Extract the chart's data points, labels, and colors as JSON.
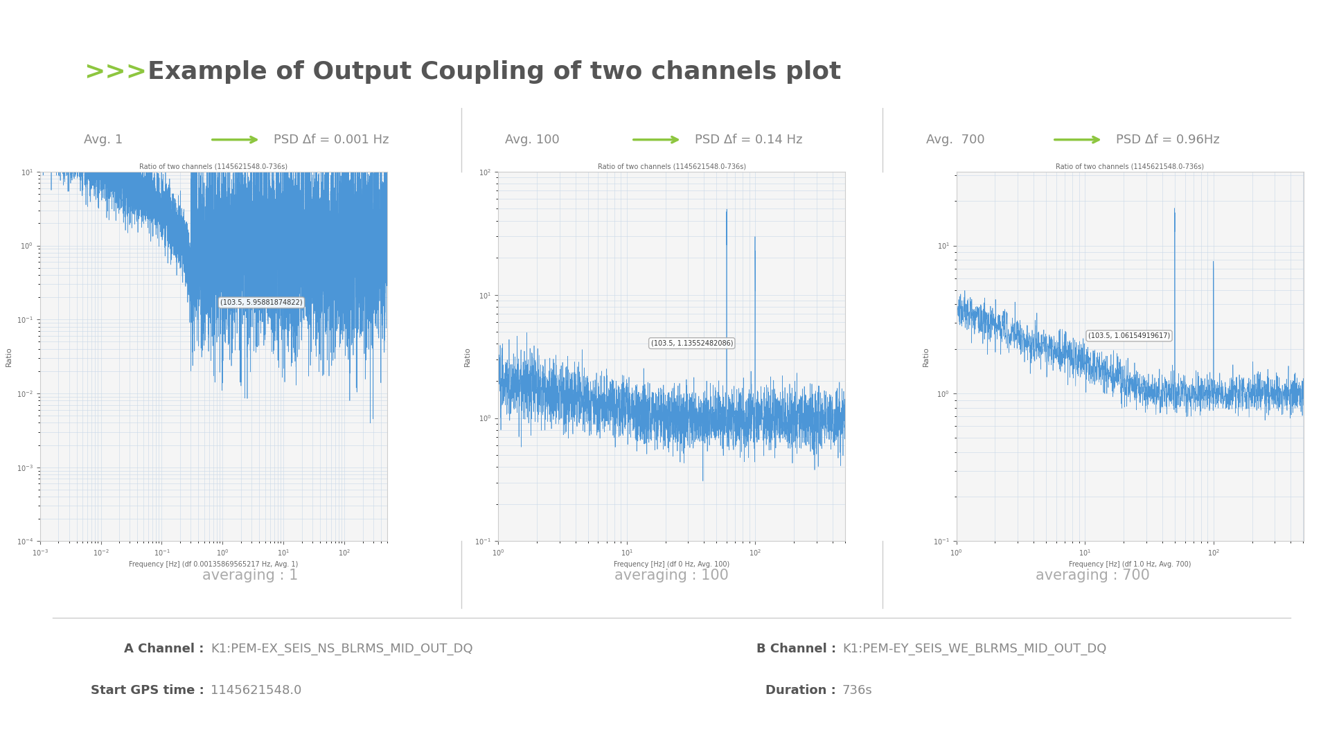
{
  "title": "Example of Output Coupling of two channels plot",
  "title_prefix": ">>>",
  "title_prefix_color": "#8dc63f",
  "title_color": "#555555",
  "title_fontsize": 26,
  "panels": [
    {
      "avg_label": "Avg. 1",
      "psd_label": "PSD Δf = 0.001 Hz",
      "plot_title": "Ratio of two channels (1145621548.0-736s)",
      "xlabel": "Frequency [Hz] (df 0.00135869565217 Hz, Avg. 1)",
      "ylabel": "Ratio",
      "annotation": "(103.5, 5.95881874822)",
      "averaging_text": "averaging : 1"
    },
    {
      "avg_label": "Avg. 100",
      "psd_label": "PSD Δf = 0.14 Hz",
      "plot_title": "Ratio of two channels (1145621548.0-736s)",
      "xlabel": "Frequency [Hz] (df 0 Hz, Avg. 100)",
      "ylabel": "Ratio",
      "annotation": "(103.5, 1.13552482086)",
      "averaging_text": "averaging : 100"
    },
    {
      "avg_label": "Avg.  700",
      "psd_label": "PSD Δf = 0.96Hz",
      "plot_title": "Ratio of two channels (1145621548.0-736s)",
      "xlabel": "Frequency [Hz] (df 1.0 Hz, Avg. 700)",
      "ylabel": "Ratio",
      "annotation": "(103.5, 1.06154919617)",
      "averaging_text": "averaging : 700"
    }
  ],
  "line_color": "#4c96d7",
  "bg_color": "#ffffff",
  "plot_bg_color": "#f5f5f5",
  "grid_color": "#c8d8e8",
  "a_channel": "K1:PEM-EX_SEIS_NS_BLRMS_MID_OUT_DQ",
  "b_channel": "K1:PEM-EY_SEIS_WE_BLRMS_MID_OUT_DQ",
  "start_gps": "1145621548.0",
  "duration": "736s",
  "footer_color": "#888888",
  "footer_bold_color": "#555555",
  "footer_fontsize": 13,
  "avg_fontsize": 13,
  "psd_fontsize": 13,
  "averaging_fontsize": 15,
  "arrow_color": "#8dc63f"
}
